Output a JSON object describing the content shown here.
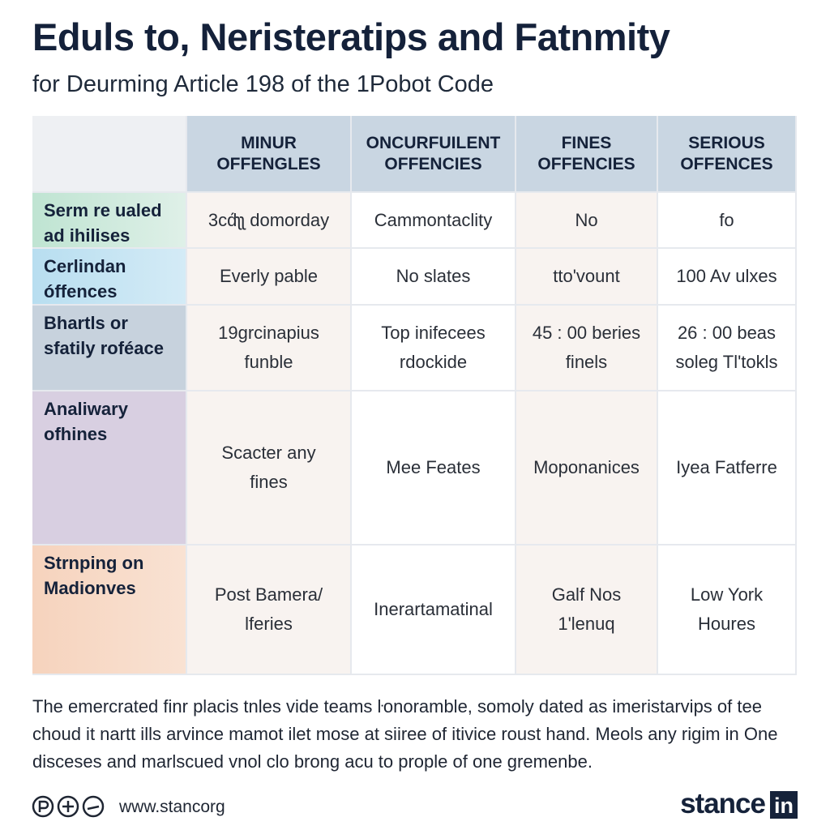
{
  "header": {
    "title": "Eduls to, Neristeratips and Fatnmity",
    "subtitle": "for Deurming Article 198 of the 1Pobot Code"
  },
  "table": {
    "columns": [
      "MINUR\nOFFENGLES",
      "ONCURFUILENT\nOFFENCIES",
      "FINES\nOFFENCIES",
      "SERIOUS\nOFFENCES"
    ],
    "rows": [
      {
        "label": "Serm re ualed\nad ihilises",
        "cells": [
          "3cd́ʅʅ domorday",
          "Cammontaclity",
          "No",
          "fo"
        ]
      },
      {
        "label": "Cerlindan\nóffences",
        "cells": [
          "Everly pable",
          "No slates",
          "tto'vount",
          "100 Av ulxes"
        ]
      },
      {
        "label": "Bhartls or\nsfatily roféace",
        "cells": [
          "19grcinapius\nfunble",
          "Top inifecees\nrdockide",
          "45 : 00 beries\nfinels",
          "26 : 00 beas\nsoleg Tl'tokls"
        ]
      },
      {
        "label": "Analiwary\nofhines",
        "cells": [
          "Scacter any\nfines",
          "Mee Feates",
          "Moponanices",
          "Iyea Fatferre"
        ]
      },
      {
        "label": "Strnping on\nMadionves",
        "cells": [
          "Post Bamera/\nlferies",
          "Inerartamatinal",
          "Galf Nos\n1'lenuq",
          "Low York\nHoures"
        ]
      }
    ]
  },
  "paragraph": [
    "The emercrated finr placis tnles vide teams ŀonoramble, somoly dated as imeristarvips of tee",
    "choud it nartt ills arvince mamot ilet mose at siiree of itivice roust hand. Meols any rigim in One",
    "disceses and marlscued vnol clo brong acu to prople of one gremenbe."
  ],
  "footer": {
    "url": "www.stancorg",
    "brand": "stance",
    "badge": "in"
  }
}
